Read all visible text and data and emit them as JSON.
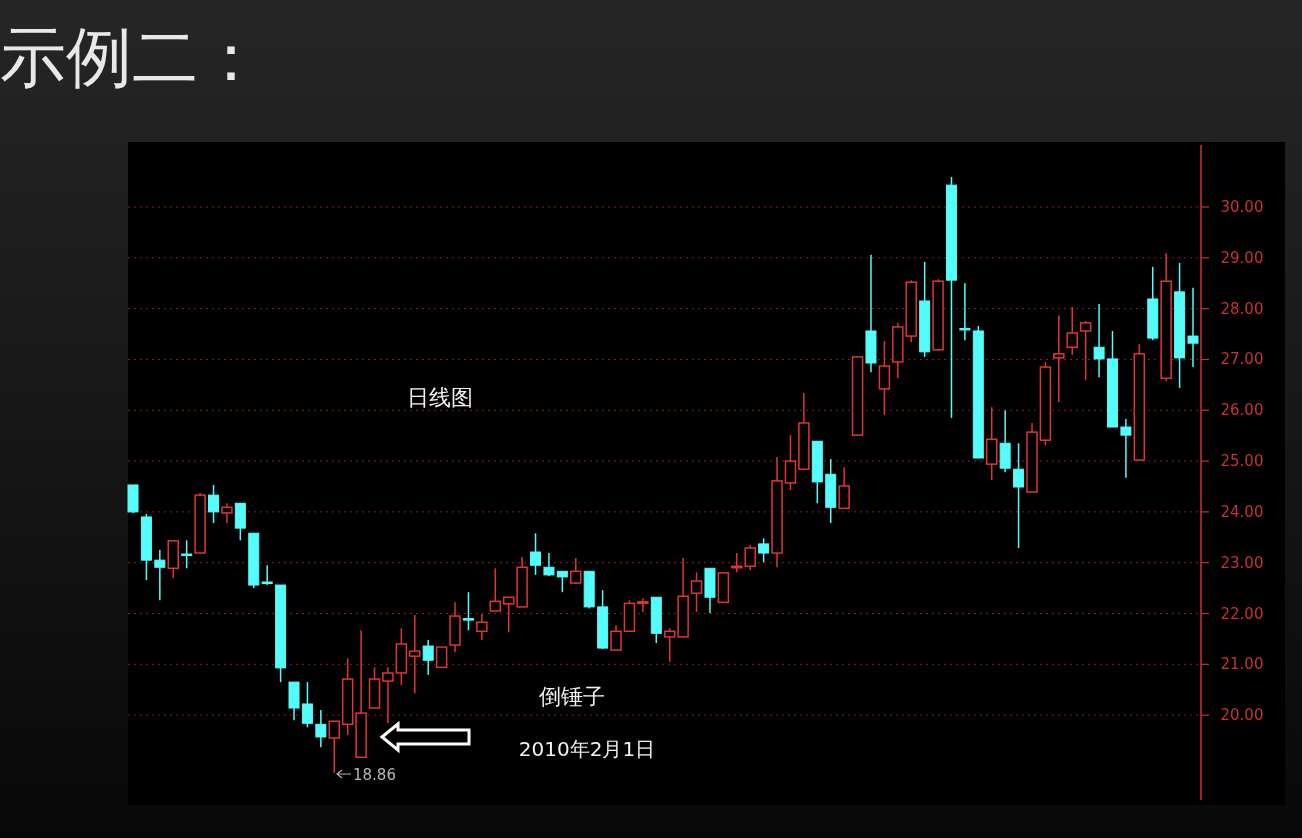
{
  "chart_data": {
    "type": "candlestick",
    "title": "示例二：",
    "annotations": [
      "日线图",
      "倒锤子",
      "2010年2月1日",
      "18.86"
    ],
    "categories": [
      null,
      null,
      null,
      null,
      null,
      null,
      null,
      null,
      null,
      null,
      null,
      null,
      null,
      null,
      null,
      null,
      null,
      null,
      null,
      null,
      null,
      null,
      null,
      null,
      null,
      null,
      null,
      null,
      null,
      null,
      null,
      null,
      null,
      null,
      null,
      null,
      null,
      null,
      null,
      null,
      null,
      null,
      null,
      null,
      null,
      null,
      null,
      null,
      null,
      null,
      null,
      null,
      null,
      null,
      null,
      null,
      null,
      null,
      null,
      null,
      null,
      null,
      null,
      null,
      null,
      null,
      null,
      null,
      null,
      null,
      null,
      null,
      null,
      null,
      null,
      null,
      null,
      null,
      null,
      null
    ],
    "ohlc": [
      [
        24.53,
        24.53,
        23.98,
        24.0
      ],
      [
        23.9,
        23.96,
        22.66,
        23.05
      ],
      [
        23.05,
        23.25,
        22.26,
        22.91
      ],
      [
        22.89,
        23.43,
        22.7,
        23.43
      ],
      [
        23.17,
        23.44,
        22.89,
        23.16
      ],
      [
        23.19,
        24.37,
        23.19,
        24.33
      ],
      [
        24.33,
        24.53,
        23.78,
        24.0
      ],
      [
        23.98,
        24.17,
        23.78,
        24.09
      ],
      [
        24.17,
        24.17,
        23.44,
        23.68
      ],
      [
        23.58,
        23.58,
        22.5,
        22.56
      ],
      [
        22.62,
        22.95,
        22.56,
        22.6
      ],
      [
        22.56,
        22.56,
        20.65,
        20.93
      ],
      [
        20.65,
        20.65,
        19.9,
        20.14
      ],
      [
        20.22,
        20.65,
        19.76,
        19.84
      ],
      [
        19.82,
        20.1,
        19.37,
        19.57
      ],
      [
        19.55,
        19.88,
        18.86,
        19.88
      ],
      [
        19.82,
        21.12,
        19.61,
        20.71
      ],
      [
        19.17,
        21.67,
        19.17,
        20.04
      ],
      [
        20.14,
        20.94,
        20.14,
        20.71
      ],
      [
        20.67,
        20.94,
        19.84,
        20.83
      ],
      [
        20.83,
        21.71,
        20.59,
        21.4
      ],
      [
        21.16,
        21.97,
        20.43,
        21.26
      ],
      [
        21.36,
        21.48,
        20.79,
        21.08
      ],
      [
        20.94,
        21.34,
        20.94,
        21.34
      ],
      [
        21.38,
        22.22,
        21.24,
        21.95
      ],
      [
        21.9,
        22.42,
        21.67,
        21.88
      ],
      [
        21.65,
        21.99,
        21.48,
        21.83
      ],
      [
        22.05,
        22.89,
        22.05,
        22.24
      ],
      [
        22.19,
        22.32,
        21.63,
        22.32
      ],
      [
        22.13,
        23.11,
        22.13,
        22.91
      ],
      [
        23.21,
        23.58,
        22.76,
        22.95
      ],
      [
        22.91,
        23.19,
        22.74,
        22.76
      ],
      [
        22.83,
        22.83,
        22.42,
        22.72
      ],
      [
        22.6,
        23.09,
        22.58,
        22.83
      ],
      [
        22.83,
        22.83,
        22.1,
        22.13
      ],
      [
        22.13,
        22.46,
        21.3,
        21.32
      ],
      [
        21.28,
        21.77,
        21.28,
        21.65
      ],
      [
        21.65,
        22.26,
        21.65,
        22.2
      ],
      [
        22.21,
        22.3,
        22.03,
        22.23
      ],
      [
        22.32,
        22.32,
        21.42,
        21.61
      ],
      [
        21.54,
        21.71,
        21.05,
        21.65
      ],
      [
        21.54,
        23.09,
        21.54,
        22.34
      ],
      [
        22.4,
        22.81,
        22.03,
        22.64
      ],
      [
        22.89,
        22.89,
        22.01,
        22.32
      ],
      [
        22.22,
        22.8,
        22.22,
        22.8
      ],
      [
        22.9,
        23.19,
        22.81,
        22.93
      ],
      [
        22.93,
        23.35,
        22.85,
        23.29
      ],
      [
        23.37,
        23.48,
        23.01,
        23.19
      ],
      [
        23.19,
        25.08,
        22.91,
        24.61
      ],
      [
        24.57,
        25.51,
        24.43,
        25.0
      ],
      [
        24.84,
        26.34,
        24.84,
        25.75
      ],
      [
        25.39,
        25.39,
        24.17,
        24.59
      ],
      [
        24.74,
        25.04,
        23.78,
        24.09
      ],
      [
        24.07,
        24.88,
        24.07,
        24.51
      ],
      [
        25.51,
        27.05,
        25.51,
        27.05
      ],
      [
        27.56,
        29.06,
        26.75,
        26.93
      ],
      [
        26.42,
        27.36,
        25.91,
        26.87
      ],
      [
        26.95,
        27.72,
        26.63,
        27.64
      ],
      [
        27.46,
        28.56,
        27.34,
        28.52
      ],
      [
        28.15,
        28.92,
        27.05,
        27.15
      ],
      [
        27.19,
        28.58,
        27.17,
        28.54
      ],
      [
        30.43,
        30.59,
        25.85,
        28.56
      ],
      [
        27.61,
        28.5,
        27.38,
        27.6
      ],
      [
        27.56,
        27.66,
        25.06,
        25.06
      ],
      [
        24.94,
        26.06,
        24.63,
        25.43
      ],
      [
        25.35,
        26.0,
        24.78,
        24.86
      ],
      [
        24.84,
        25.35,
        23.29,
        24.49
      ],
      [
        24.39,
        25.75,
        24.39,
        25.57
      ],
      [
        25.41,
        26.95,
        25.31,
        26.85
      ],
      [
        27.03,
        27.87,
        26.16,
        27.11
      ],
      [
        27.24,
        28.03,
        27.09,
        27.52
      ],
      [
        27.56,
        27.76,
        26.59,
        27.72
      ],
      [
        27.24,
        28.09,
        26.65,
        27.01
      ],
      [
        27.01,
        27.56,
        25.67,
        25.67
      ],
      [
        25.67,
        25.83,
        24.67,
        25.51
      ],
      [
        25.02,
        27.3,
        25.02,
        27.11
      ],
      [
        28.19,
        28.82,
        27.38,
        27.42
      ],
      [
        26.63,
        29.09,
        26.57,
        28.54
      ],
      [
        28.33,
        28.9,
        26.44,
        27.03
      ],
      [
        27.46,
        28.41,
        26.85,
        27.32
      ]
    ],
    "colors": [
      "#55fcfc",
      "#55fcfc",
      "#55fcfc",
      "#e03535",
      "#55fcfc",
      "#e03535",
      "#55fcfc",
      "#e03535",
      "#55fcfc",
      "#55fcfc",
      "#55fcfc",
      "#55fcfc",
      "#55fcfc",
      "#55fcfc",
      "#55fcfc",
      "#e03535",
      "#e03535",
      "#e03535",
      "#e03535",
      "#e03535",
      "#e03535",
      "#e03535",
      "#55fcfc",
      "#e03535",
      "#e03535",
      "#55fcfc",
      "#e03535",
      "#e03535",
      "#e03535",
      "#e03535",
      "#55fcfc",
      "#55fcfc",
      "#55fcfc",
      "#e03535",
      "#55fcfc",
      "#55fcfc",
      "#e03535",
      "#e03535",
      "#e03535",
      "#55fcfc",
      "#e03535",
      "#e03535",
      "#e03535",
      "#55fcfc",
      "#e03535",
      "#e03535",
      "#e03535",
      "#55fcfc",
      "#e03535",
      "#e03535",
      "#e03535",
      "#55fcfc",
      "#55fcfc",
      "#e03535",
      "#e03535",
      "#55fcfc",
      "#e03535",
      "#e03535",
      "#e03535",
      "#55fcfc",
      "#e03535",
      "#55fcfc",
      "#55fcfc",
      "#55fcfc",
      "#e03535",
      "#55fcfc",
      "#55fcfc",
      "#e03535",
      "#e03535",
      "#e03535",
      "#e03535",
      "#e03535",
      "#55fcfc",
      "#55fcfc",
      "#55fcfc",
      "#e03535",
      "#55fcfc",
      "#e03535",
      "#55fcfc",
      "#55fcfc"
    ],
    "ylim": [
      18.33,
      31.22
    ],
    "yticks": [
      {
        "value": 20,
        "label": "20.00"
      },
      {
        "value": 21,
        "label": "21.00"
      },
      {
        "value": 22,
        "label": "22.00"
      },
      {
        "value": 23,
        "label": "23.00"
      },
      {
        "value": 24,
        "label": "24.00"
      },
      {
        "value": 25,
        "label": "25.00"
      },
      {
        "value": 26,
        "label": "26.00"
      },
      {
        "value": 27,
        "label": "27.00"
      },
      {
        "value": 28,
        "label": "28.00"
      },
      {
        "value": 29,
        "label": "29.00"
      },
      {
        "value": 30,
        "label": "30.00"
      }
    ],
    "grid": "y"
  }
}
